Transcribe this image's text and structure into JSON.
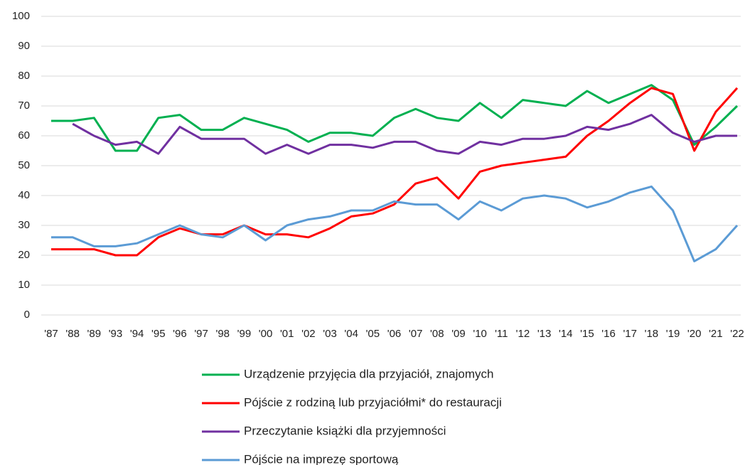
{
  "chart_data": {
    "type": "line",
    "categories": [
      "'87",
      "'88",
      "'89",
      "'93",
      "'94",
      "'95",
      "'96",
      "'97",
      "'98",
      "'99",
      "'00",
      "'01",
      "'02",
      "'03",
      "'04",
      "'05",
      "'06",
      "'07",
      "'08",
      "'09",
      "'10",
      "'11",
      "'12",
      "'13",
      "'14",
      "'15",
      "'16",
      "'17",
      "'18",
      "'19",
      "'20",
      "'21",
      "'22"
    ],
    "series": [
      {
        "name": "Urządzenie przyjęcia dla przyjaciół, znajomych",
        "color": "#00b050",
        "values": [
          65,
          65,
          66,
          55,
          55,
          66,
          67,
          62,
          62,
          66,
          64,
          62,
          58,
          61,
          61,
          60,
          66,
          69,
          66,
          65,
          71,
          66,
          72,
          71,
          70,
          75,
          71,
          74,
          77,
          72,
          57,
          63,
          70
        ]
      },
      {
        "name": "Pójście z rodziną lub przyjaciółmi* do restauracji",
        "color": "#ff0000",
        "values": [
          22,
          22,
          22,
          20,
          20,
          26,
          29,
          27,
          27,
          30,
          27,
          27,
          26,
          29,
          33,
          34,
          37,
          44,
          46,
          39,
          48,
          50,
          51,
          52,
          53,
          60,
          65,
          71,
          76,
          74,
          55,
          68,
          76
        ]
      },
      {
        "name": "Przeczytanie książki dla przyjemności",
        "color": "#7030a0",
        "values": [
          null,
          64,
          60,
          57,
          58,
          54,
          63,
          59,
          59,
          59,
          54,
          57,
          54,
          57,
          57,
          56,
          58,
          58,
          55,
          54,
          58,
          57,
          59,
          59,
          60,
          63,
          62,
          64,
          67,
          61,
          58,
          60,
          60
        ]
      },
      {
        "name": "Pójście na imprezę sportową",
        "color": "#5b9bd5",
        "values": [
          26,
          26,
          23,
          23,
          24,
          27,
          30,
          27,
          26,
          30,
          25,
          30,
          32,
          33,
          35,
          35,
          38,
          37,
          37,
          32,
          38,
          35,
          39,
          40,
          39,
          36,
          38,
          41,
          43,
          35,
          18,
          22,
          30
        ]
      }
    ],
    "ylim": [
      0,
      100
    ],
    "yticks": [
      0,
      10,
      20,
      30,
      40,
      50,
      60,
      70,
      80,
      90,
      100
    ],
    "grid": true,
    "legend": "bottom"
  }
}
